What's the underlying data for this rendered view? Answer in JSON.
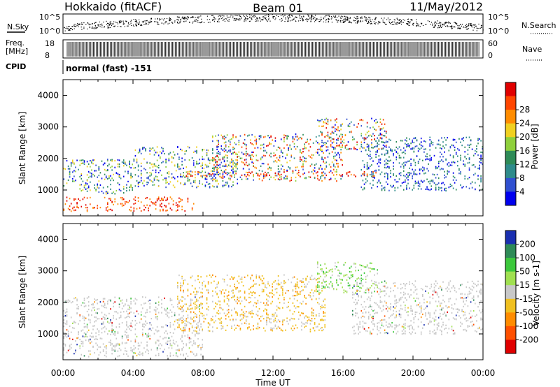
{
  "header": {
    "station": "Hokkaido (fitACF)",
    "beam": "Beam 01",
    "date": "11/May/2012"
  },
  "mini_panels": {
    "nsky_label": "N.Sky",
    "nsky_ticks": [
      "10^5",
      "10^0"
    ],
    "nsearch_label": "N.Search",
    "nsearch_ticks": [
      "10^5",
      "10^0"
    ],
    "freq_label": "Freq.",
    "freq_unit": "[MHz]",
    "freq_ticks": [
      "18",
      "8"
    ],
    "nave_label": "Nave",
    "nave_ticks": [
      "60",
      "0"
    ],
    "cpid_label": "CPID",
    "cpid_text": "normal (fast) -151"
  },
  "chart_data": [
    {
      "type": "heatmap",
      "name": "power",
      "ylabel": "Slant Range [km]",
      "xlabel": "",
      "ylim": [
        180,
        4500
      ],
      "xlim": [
        0,
        24
      ],
      "y_ticks": [
        "1000",
        "2000",
        "3000",
        "4000"
      ],
      "y_tick_values": [
        1000,
        2000,
        3000,
        4000
      ],
      "colorbar": {
        "label": "Power [dB]",
        "ticks": [
          "4",
          "8",
          "12",
          "16",
          "20",
          "24",
          "28"
        ],
        "colors": [
          "#0000ee",
          "#3050d0",
          "#2e8b8b",
          "#2e8b57",
          "#8fd03c",
          "#f0d020",
          "#ff8c00",
          "#ff4500",
          "#e00000"
        ]
      },
      "regions": [
        {
          "t0": 0.0,
          "t1": 7.5,
          "r0": 350,
          "r1": 800,
          "level": "high"
        },
        {
          "t0": 0.0,
          "t1": 4.0,
          "r0": 900,
          "r1": 2000,
          "level": "mid"
        },
        {
          "t0": 4.0,
          "t1": 10.0,
          "r0": 1100,
          "r1": 2400,
          "level": "mid"
        },
        {
          "t0": 8.5,
          "t1": 16.0,
          "r0": 1300,
          "r1": 2800,
          "level": "mixed"
        },
        {
          "t0": 14.5,
          "t1": 18.5,
          "r0": 2300,
          "r1": 3300,
          "level": "mixed"
        },
        {
          "t0": 17.0,
          "t1": 24.0,
          "r0": 1000,
          "r1": 2700,
          "level": "low"
        },
        {
          "t0": 7.0,
          "t1": 18.0,
          "r0": 1450,
          "r1": 1600,
          "level": "high"
        }
      ]
    },
    {
      "type": "heatmap",
      "name": "velocity",
      "ylabel": "Slant Range [km]",
      "xlabel": "Time UT",
      "ylim": [
        180,
        4500
      ],
      "xlim": [
        0,
        24
      ],
      "y_ticks": [
        "1000",
        "2000",
        "3000",
        "4000"
      ],
      "y_tick_values": [
        1000,
        2000,
        3000,
        4000
      ],
      "x_ticks": [
        "00:00",
        "04:00",
        "08:00",
        "12:00",
        "16:00",
        "20:00",
        "00:00"
      ],
      "colorbar": {
        "label": "Velocity [m s-1]",
        "ticks": [
          "200",
          "100",
          "50",
          "15",
          "-15",
          "-50",
          "-100",
          "-200"
        ],
        "colors": [
          "#1a2fb0",
          "#2e8b57",
          "#3cc83c",
          "#a0e050",
          "#c8c8c8",
          "#f0c020",
          "#ff8c00",
          "#ff5000",
          "#e00000"
        ]
      },
      "regions": [
        {
          "t0": 0.0,
          "t1": 8.0,
          "r0": 300,
          "r1": 2200,
          "level": "ground"
        },
        {
          "t0": 6.5,
          "t1": 15.0,
          "r0": 1100,
          "r1": 2900,
          "level": "negative"
        },
        {
          "t0": 14.5,
          "t1": 18.0,
          "r0": 2300,
          "r1": 3300,
          "level": "positive"
        },
        {
          "t0": 16.5,
          "t1": 24.0,
          "r0": 1000,
          "r1": 2700,
          "level": "ground"
        }
      ]
    }
  ]
}
